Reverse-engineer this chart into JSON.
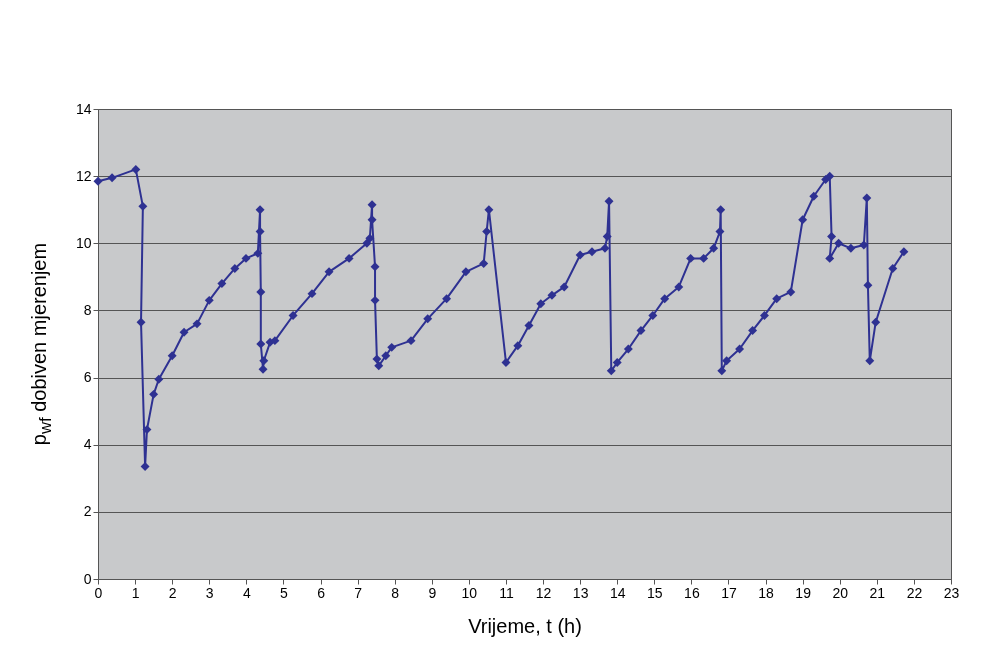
{
  "chart_data": {
    "type": "line",
    "xlabel": "Vrijeme, t (h)",
    "ylabel": "p$_{wf}$ dobiven mjerenjem",
    "x": [
      0,
      0.38,
      1.02,
      1.21,
      1.16,
      1.27,
      1.32,
      1.5,
      1.64,
      2.0,
      2.32,
      2.67,
      3.0,
      3.34,
      3.69,
      3.99,
      4.31,
      4.37,
      4.37,
      4.39,
      4.39,
      4.45,
      4.47,
      4.64,
      4.77,
      5.26,
      5.77,
      6.23,
      6.77,
      7.25,
      7.33,
      7.39,
      7.39,
      7.47,
      7.47,
      7.52,
      7.57,
      7.76,
      7.92,
      8.44,
      8.89,
      9.4,
      9.92,
      10.4,
      10.48,
      10.54,
      11.0,
      11.32,
      11.62,
      11.94,
      12.24,
      12.57,
      13.0,
      13.32,
      13.67,
      13.73,
      13.78,
      13.84,
      14.0,
      14.3,
      14.64,
      14.96,
      15.28,
      15.66,
      15.98,
      16.33,
      16.6,
      16.77,
      16.79,
      16.82,
      16.95,
      17.3,
      17.65,
      17.97,
      18.3,
      18.68,
      19.0,
      19.3,
      19.62,
      19.73,
      19.78,
      19.73,
      19.97,
      20.3,
      20.65,
      20.73,
      20.76,
      20.81,
      20.97,
      21.43,
      21.73
    ],
    "series": [
      {
        "color": "#2e3192",
        "values": [
          11.85,
          11.95,
          12.2,
          11.1,
          7.65,
          3.35,
          4.45,
          5.5,
          5.95,
          6.65,
          7.35,
          7.6,
          8.3,
          8.8,
          9.25,
          9.55,
          9.7,
          11.0,
          10.35,
          8.55,
          7.0,
          6.25,
          6.5,
          7.05,
          7.1,
          7.85,
          8.5,
          9.15,
          9.55,
          10.0,
          10.15,
          11.15,
          10.7,
          9.3,
          8.3,
          6.55,
          6.35,
          6.65,
          6.9,
          7.1,
          7.75,
          8.35,
          9.15,
          9.4,
          10.35,
          11.0,
          6.45,
          6.95,
          7.55,
          8.2,
          8.45,
          8.7,
          9.65,
          9.75,
          9.85,
          10.2,
          11.25,
          6.2,
          6.45,
          6.85,
          7.4,
          7.85,
          8.35,
          8.7,
          9.55,
          9.55,
          9.85,
          10.35,
          11.0,
          6.2,
          6.5,
          6.85,
          7.4,
          7.85,
          8.35,
          8.55,
          10.7,
          11.4,
          11.9,
          12.0,
          10.2,
          9.55,
          10.0,
          9.85,
          9.95,
          11.35,
          8.75,
          6.5,
          7.65,
          9.25,
          9.75
        ]
      }
    ],
    "xlim": [
      0,
      23
    ],
    "xticks": [
      0,
      1,
      2,
      3,
      4,
      5,
      6,
      7,
      8,
      9,
      10,
      11,
      12,
      13,
      14,
      15,
      16,
      17,
      18,
      19,
      20,
      21,
      22,
      23
    ],
    "ylim": [
      0,
      14
    ],
    "yticks": [
      0,
      2,
      4,
      6,
      8,
      10,
      12,
      14
    ],
    "grid": "y",
    "marker": "diamond",
    "line_style": "solid"
  }
}
